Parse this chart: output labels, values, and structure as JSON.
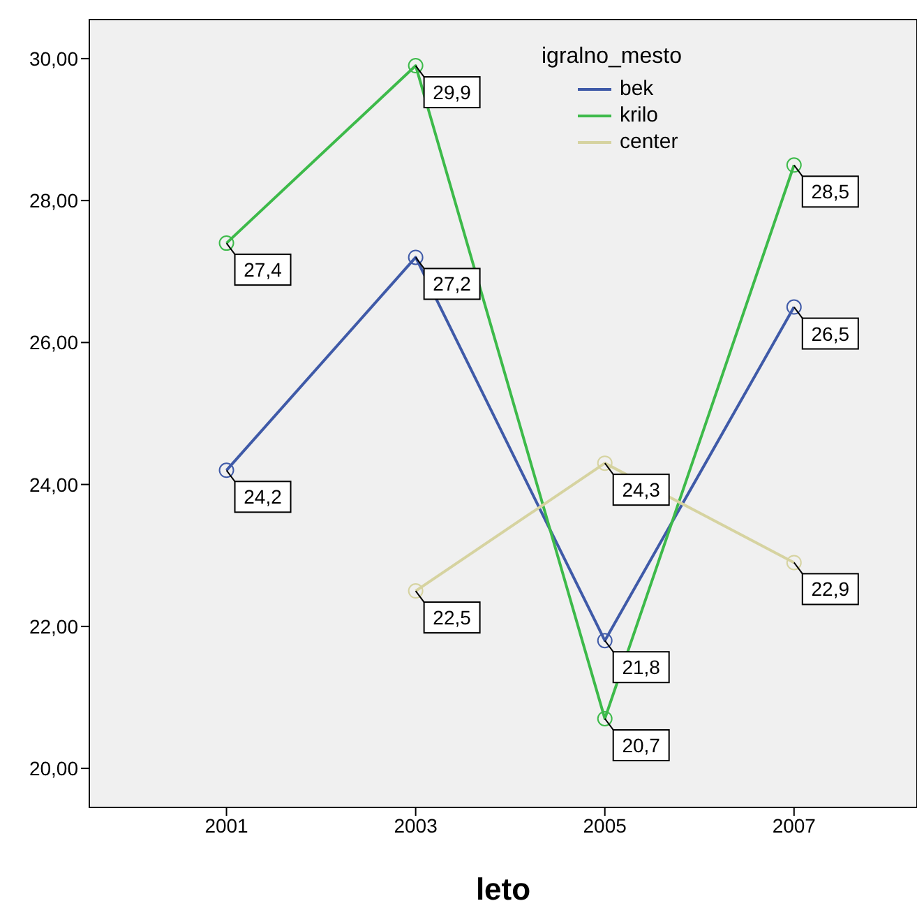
{
  "chart_data": {
    "type": "line",
    "xlabel": "leto",
    "legend_title": "igralno_mesto",
    "x": [
      2001,
      2003,
      2005,
      2007
    ],
    "xlim": [
      1999.55,
      2008.3
    ],
    "xticks": [
      2001,
      2003,
      2005,
      2007
    ],
    "ylim": [
      19.45,
      30.55
    ],
    "yticks": [
      {
        "value": 20,
        "label": "20,00"
      },
      {
        "value": 22,
        "label": "22,00"
      },
      {
        "value": 24,
        "label": "24,00"
      },
      {
        "value": 26,
        "label": "26,00"
      },
      {
        "value": 28,
        "label": "28,00"
      },
      {
        "value": 30,
        "label": "30,00"
      }
    ],
    "series": [
      {
        "name": "bek",
        "color": "#3f5aa8",
        "values": [
          24.2,
          27.2,
          21.8,
          26.5
        ],
        "value_labels": [
          "24,2",
          "27,2",
          "21,8",
          "26,5"
        ]
      },
      {
        "name": "krilo",
        "color": "#3dba4a",
        "values": [
          27.4,
          29.9,
          20.7,
          28.5
        ],
        "value_labels": [
          "27,4",
          "29,9",
          "20,7",
          "28,5"
        ]
      },
      {
        "name": "center",
        "color": "#d6d3a0",
        "values": [
          null,
          22.5,
          24.3,
          22.9
        ],
        "value_labels": [
          null,
          "22,5",
          "24,3",
          "22,9"
        ]
      }
    ],
    "marker": "circle",
    "line_style": "solid",
    "legend": "top right"
  }
}
